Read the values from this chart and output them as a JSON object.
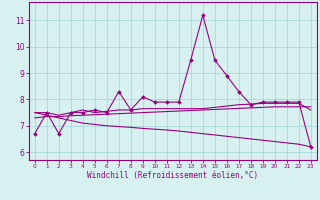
{
  "xlabel": "Windchill (Refroidissement éolien,°C)",
  "hours": [
    0,
    1,
    2,
    3,
    4,
    5,
    6,
    7,
    8,
    9,
    10,
    11,
    12,
    13,
    14,
    15,
    16,
    17,
    18,
    19,
    20,
    21,
    22,
    23
  ],
  "main_line": [
    6.7,
    7.5,
    6.7,
    7.5,
    7.5,
    7.6,
    7.5,
    8.3,
    7.6,
    8.1,
    7.9,
    7.9,
    7.9,
    9.5,
    11.2,
    9.5,
    8.9,
    8.3,
    7.8,
    7.9,
    7.9,
    7.9,
    7.9,
    6.2
  ],
  "line_upper": [
    7.5,
    7.5,
    7.4,
    7.5,
    7.6,
    7.5,
    7.55,
    7.6,
    7.6,
    7.65,
    7.65,
    7.65,
    7.65,
    7.65,
    7.65,
    7.7,
    7.75,
    7.8,
    7.82,
    7.85,
    7.85,
    7.85,
    7.85,
    7.6
  ],
  "line_mid": [
    7.3,
    7.35,
    7.35,
    7.38,
    7.4,
    7.42,
    7.44,
    7.46,
    7.48,
    7.5,
    7.52,
    7.54,
    7.56,
    7.58,
    7.6,
    7.62,
    7.64,
    7.66,
    7.68,
    7.7,
    7.72,
    7.72,
    7.72,
    7.72
  ],
  "line_lower": [
    7.5,
    7.4,
    7.3,
    7.2,
    7.1,
    7.05,
    7.0,
    6.97,
    6.94,
    6.9,
    6.87,
    6.84,
    6.8,
    6.75,
    6.7,
    6.65,
    6.6,
    6.55,
    6.5,
    6.45,
    6.4,
    6.35,
    6.3,
    6.2
  ],
  "color": "#990080",
  "bg_color": "#d7f0f0",
  "grid_color": "#a8d8d8",
  "ylim": [
    5.7,
    11.7
  ],
  "yticks": [
    6,
    7,
    8,
    9,
    10,
    11
  ],
  "xticks": [
    0,
    1,
    2,
    3,
    4,
    5,
    6,
    7,
    8,
    9,
    10,
    11,
    12,
    13,
    14,
    15,
    16,
    17,
    18,
    19,
    20,
    21,
    22,
    23
  ]
}
